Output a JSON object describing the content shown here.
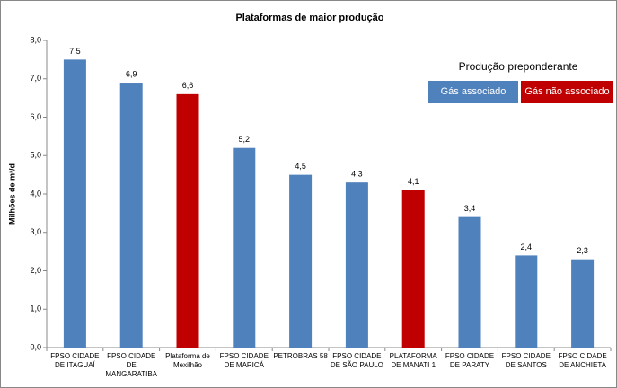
{
  "chart_data": {
    "type": "bar",
    "title": "Plataformas de maior produção",
    "y_label": "Milhões de m³/d",
    "categories": [
      "FPSO CIDADE DE ITAGUAÍ",
      "FPSO CIDADE DE MANGARATIBA",
      "Plataforma de Mexilhão",
      "FPSO CIDADE DE MARICÁ",
      "PETROBRAS 58",
      "FPSO CIDADE DE SÃO PAULO",
      "PLATAFORMA DE MANATI 1",
      "FPSO CIDADE DE PARATY",
      "FPSO CIDADE DE SANTOS",
      "FPSO CIDADE DE ANCHIETA"
    ],
    "legend_title": "Produção preponderante",
    "series": [
      {
        "name": "Gás associado",
        "color": "#4f81bd",
        "values": [
          7.5,
          6.9,
          null,
          5.2,
          4.5,
          4.3,
          null,
          3.4,
          2.4,
          2.3
        ],
        "value_labels": [
          "7,5",
          "6,9",
          null,
          "5,2",
          "4,5",
          "4,3",
          null,
          "3,4",
          "2,4",
          "2,3"
        ]
      },
      {
        "name": "Gás não associado",
        "color": "#c00000",
        "values": [
          null,
          null,
          6.6,
          null,
          null,
          null,
          4.1,
          null,
          null,
          null
        ],
        "value_labels": [
          null,
          null,
          "6,6",
          null,
          null,
          null,
          "4,1",
          null,
          null,
          null
        ]
      }
    ],
    "ylim": [
      0,
      8
    ],
    "yticks": [
      {
        "value": 0,
        "label": "0,0"
      },
      {
        "value": 1,
        "label": "1,0"
      },
      {
        "value": 2,
        "label": "2,0"
      },
      {
        "value": 3,
        "label": "3,0"
      },
      {
        "value": 4,
        "label": "4,0"
      },
      {
        "value": 5,
        "label": "5,0"
      },
      {
        "value": 6,
        "label": "6,0"
      },
      {
        "value": 7,
        "label": "7,0"
      },
      {
        "value": 8,
        "label": "8,0"
      }
    ],
    "grid": false
  }
}
